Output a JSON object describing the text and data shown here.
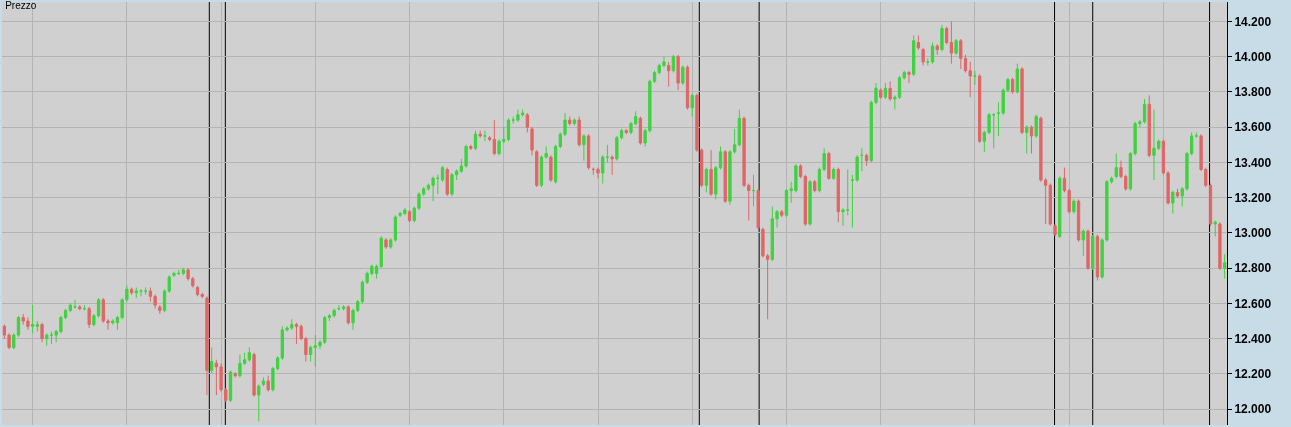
{
  "chart_data": {
    "type": "candlestick",
    "title": "Prezzo",
    "categories": [
      null,
      null,
      null,
      null,
      null,
      null,
      null,
      null,
      null,
      null,
      null,
      null,
      null,
      null,
      null,
      null,
      null,
      null,
      null,
      null,
      null,
      null,
      null,
      null,
      null,
      null,
      null,
      null,
      null,
      null,
      null,
      null,
      null,
      null,
      null,
      null,
      null,
      null,
      null,
      null,
      null,
      null,
      null,
      null,
      null,
      null,
      null,
      null,
      null,
      null,
      null,
      null,
      null,
      null,
      null,
      null,
      null,
      null,
      null,
      null,
      null,
      null,
      null,
      null,
      null,
      null,
      null,
      null,
      null,
      null,
      null,
      null,
      null,
      null,
      null,
      null,
      null,
      null,
      null,
      null,
      null,
      null,
      null,
      null,
      null,
      null,
      null,
      null,
      null,
      null,
      null,
      null,
      null,
      null,
      null,
      null,
      null,
      null,
      null,
      null,
      null,
      null,
      null,
      null,
      null,
      null,
      null,
      null,
      null,
      null,
      null,
      null,
      null,
      null,
      null,
      null,
      null,
      null,
      null,
      null,
      null,
      null,
      null,
      null,
      null,
      null,
      null,
      null,
      null,
      null,
      null,
      null,
      null,
      null,
      null,
      null,
      null,
      null,
      null,
      null,
      null,
      null,
      null,
      null,
      null,
      null,
      null,
      null,
      null,
      null,
      null,
      null,
      null,
      null,
      null,
      null,
      null,
      null,
      null,
      null,
      null,
      null,
      null,
      null,
      null,
      null,
      null,
      null,
      null,
      null,
      null,
      null,
      null,
      null,
      null,
      null,
      null,
      null,
      null,
      null,
      null,
      null,
      null,
      null,
      null,
      null,
      null,
      null,
      null,
      null,
      null,
      null,
      null,
      null,
      null,
      null,
      null,
      null,
      null,
      null,
      null,
      null,
      null,
      null,
      null,
      null,
      null,
      null,
      null,
      null,
      null,
      null,
      null,
      null,
      null,
      null,
      null,
      null,
      null,
      null,
      null,
      null,
      null,
      null,
      null,
      null,
      null,
      null,
      null,
      null,
      null,
      null,
      null,
      null,
      null,
      null,
      null,
      null,
      null,
      null,
      null,
      null,
      null,
      null,
      null,
      null,
      null,
      null,
      null,
      null,
      null,
      null,
      null,
      null,
      null,
      null,
      null,
      null,
      null,
      null
    ],
    "ohlc": [
      [
        12470,
        12480,
        12400,
        12420
      ],
      [
        12420,
        12430,
        12340,
        12350
      ],
      [
        12350,
        12430,
        12340,
        12420
      ],
      [
        12420,
        12530,
        12410,
        12520
      ],
      [
        12520,
        12540,
        12480,
        12500
      ],
      [
        12500,
        12520,
        12450,
        12470
      ],
      [
        12470,
        12590,
        12430,
        12480
      ],
      [
        12470,
        12500,
        12440,
        12480
      ],
      [
        12480,
        12490,
        12380,
        12400
      ],
      [
        12400,
        12430,
        12360,
        12420
      ],
      [
        12420,
        12440,
        12370,
        12420
      ],
      [
        12420,
        12450,
        12380,
        12440
      ],
      [
        12440,
        12530,
        12430,
        12520
      ],
      [
        12520,
        12570,
        12510,
        12560
      ],
      [
        12560,
        12600,
        12550,
        12590
      ],
      [
        12580,
        12620,
        12570,
        12580
      ],
      [
        12580,
        12590,
        12560,
        12570
      ],
      [
        12570,
        12590,
        12560,
        12570
      ],
      [
        12570,
        12580,
        12460,
        12480
      ],
      [
        12480,
        12540,
        12470,
        12530
      ],
      [
        12530,
        12630,
        12520,
        12620
      ],
      [
        12620,
        12630,
        12490,
        12500
      ],
      [
        12500,
        12510,
        12450,
        12490
      ],
      [
        12490,
        12510,
        12480,
        12500
      ],
      [
        12490,
        12530,
        12450,
        12520
      ],
      [
        12520,
        12630,
        12510,
        12620
      ],
      [
        12620,
        12700,
        12610,
        12680
      ],
      [
        12680,
        12690,
        12650,
        12660
      ],
      [
        12660,
        12690,
        12630,
        12670
      ],
      [
        12670,
        12680,
        12640,
        12670
      ],
      [
        12670,
        12690,
        12650,
        12670
      ],
      [
        12670,
        12690,
        12610,
        12640
      ],
      [
        12640,
        12650,
        12570,
        12590
      ],
      [
        12580,
        12590,
        12540,
        12560
      ],
      [
        12560,
        12680,
        12550,
        12670
      ],
      [
        12670,
        12760,
        12660,
        12750
      ],
      [
        12760,
        12780,
        12750,
        12770
      ],
      [
        12770,
        12790,
        12760,
        12770
      ],
      [
        12770,
        12800,
        12760,
        12790
      ],
      [
        12790,
        12800,
        12730,
        12740
      ],
      [
        12740,
        12750,
        12690,
        12700
      ],
      [
        12690,
        12700,
        12640,
        12650
      ],
      [
        12650,
        12660,
        12630,
        12640
      ],
      [
        12630,
        12640,
        12080,
        12220
      ],
      [
        12220,
        12350,
        12200,
        12270
      ],
      [
        12260,
        12280,
        12080,
        12240
      ],
      [
        12240,
        12260,
        12100,
        12110
      ],
      [
        12110,
        12120,
        12040,
        12050
      ],
      [
        12050,
        12220,
        12040,
        12210
      ],
      [
        12200,
        12210,
        12180,
        12190
      ],
      [
        12190,
        12310,
        12180,
        12260
      ],
      [
        12260,
        12320,
        12250,
        12280
      ],
      [
        12280,
        12350,
        12270,
        12320
      ],
      [
        12310,
        12320,
        12070,
        12080
      ],
      [
        12080,
        12140,
        11930,
        12130
      ],
      [
        12140,
        12180,
        12130,
        12160
      ],
      [
        12160,
        12190,
        12100,
        12110
      ],
      [
        12110,
        12240,
        12100,
        12230
      ],
      [
        12230,
        12300,
        12220,
        12290
      ],
      [
        12290,
        12470,
        12280,
        12450
      ],
      [
        12450,
        12470,
        12440,
        12460
      ],
      [
        12460,
        12510,
        12450,
        12480
      ],
      [
        12480,
        12490,
        12370,
        12470
      ],
      [
        12470,
        12480,
        12390,
        12400
      ],
      [
        12400,
        12410,
        12270,
        12310
      ],
      [
        12310,
        12360,
        12270,
        12350
      ],
      [
        12350,
        12420,
        12240,
        12360
      ],
      [
        12360,
        12390,
        12340,
        12380
      ],
      [
        12380,
        12530,
        12370,
        12520
      ],
      [
        12520,
        12540,
        12500,
        12530
      ],
      [
        12530,
        12570,
        12520,
        12560
      ],
      [
        12570,
        12590,
        12560,
        12570
      ],
      [
        12570,
        12590,
        12560,
        12580
      ],
      [
        12580,
        12590,
        12480,
        12490
      ],
      [
        12490,
        12570,
        12450,
        12560
      ],
      [
        12560,
        12620,
        12550,
        12610
      ],
      [
        12610,
        12730,
        12600,
        12720
      ],
      [
        12720,
        12780,
        12710,
        12770
      ],
      [
        12770,
        12820,
        12760,
        12810
      ],
      [
        12770,
        12820,
        12740,
        12810
      ],
      [
        12810,
        12980,
        12800,
        12970
      ],
      [
        12960,
        12970,
        12910,
        12920
      ],
      [
        12920,
        12970,
        12910,
        12960
      ],
      [
        12960,
        13100,
        12950,
        13090
      ],
      [
        13100,
        13120,
        13090,
        13110
      ],
      [
        13110,
        13140,
        13100,
        13130
      ],
      [
        13120,
        13130,
        13060,
        13070
      ],
      [
        13070,
        13150,
        13060,
        13140
      ],
      [
        13140,
        13230,
        13130,
        13220
      ],
      [
        13220,
        13260,
        13210,
        13250
      ],
      [
        13250,
        13280,
        13240,
        13270
      ],
      [
        13270,
        13320,
        13180,
        13310
      ],
      [
        13310,
        13330,
        13220,
        13310
      ],
      [
        13300,
        13380,
        13290,
        13370
      ],
      [
        13360,
        13370,
        13210,
        13220
      ],
      [
        13220,
        13340,
        13210,
        13330
      ],
      [
        13330,
        13360,
        13300,
        13350
      ],
      [
        13350,
        13420,
        13340,
        13380
      ],
      [
        13380,
        13500,
        13370,
        13490
      ],
      [
        13490,
        13500,
        13470,
        13480
      ],
      [
        13480,
        13580,
        13470,
        13560
      ],
      [
        13560,
        13580,
        13540,
        13550
      ],
      [
        13550,
        13580,
        13520,
        13550
      ],
      [
        13540,
        13550,
        13520,
        13530
      ],
      [
        13530,
        13640,
        13440,
        13450
      ],
      [
        13450,
        13530,
        13440,
        13520
      ],
      [
        13520,
        13600,
        13510,
        13530
      ],
      [
        13530,
        13650,
        13520,
        13640
      ],
      [
        13640,
        13660,
        13620,
        13640
      ],
      [
        13640,
        13700,
        13630,
        13670
      ],
      [
        13670,
        13700,
        13660,
        13680
      ],
      [
        13670,
        13680,
        13570,
        13600
      ],
      [
        13590,
        13600,
        13440,
        13470
      ],
      [
        13460,
        13470,
        13260,
        13270
      ],
      [
        13270,
        13440,
        13260,
        13430
      ],
      [
        13430,
        13490,
        13420,
        13450
      ],
      [
        13430,
        13440,
        13290,
        13300
      ],
      [
        13290,
        13500,
        13280,
        13490
      ],
      [
        13490,
        13570,
        13480,
        13560
      ],
      [
        13560,
        13680,
        13550,
        13640
      ],
      [
        13640,
        13660,
        13610,
        13620
      ],
      [
        13620,
        13650,
        13610,
        13640
      ],
      [
        13640,
        13660,
        13490,
        13500
      ],
      [
        13500,
        13560,
        13410,
        13550
      ],
      [
        13550,
        13560,
        13360,
        13370
      ],
      [
        13360,
        13370,
        13330,
        13360
      ],
      [
        13360,
        13370,
        13310,
        13340
      ],
      [
        13340,
        13440,
        13280,
        13430
      ],
      [
        13430,
        13500,
        13400,
        13430
      ],
      [
        13430,
        13440,
        13330,
        13420
      ],
      [
        13420,
        13550,
        13410,
        13540
      ],
      [
        13540,
        13590,
        13530,
        13580
      ],
      [
        13580,
        13590,
        13560,
        13570
      ],
      [
        13570,
        13630,
        13560,
        13620
      ],
      [
        13620,
        13690,
        13610,
        13660
      ],
      [
        13650,
        13660,
        13500,
        13510
      ],
      [
        13510,
        13590,
        13490,
        13580
      ],
      [
        13580,
        13870,
        13570,
        13860
      ],
      [
        13860,
        13920,
        13850,
        13910
      ],
      [
        13910,
        13960,
        13900,
        13950
      ],
      [
        13950,
        14000,
        13940,
        13970
      ],
      [
        13950,
        13970,
        13830,
        13920
      ],
      [
        13920,
        14010,
        13910,
        14000
      ],
      [
        14000,
        14010,
        13810,
        13850
      ],
      [
        13850,
        13950,
        13840,
        13940
      ],
      [
        13940,
        13950,
        13700,
        13710
      ],
      [
        13710,
        13790,
        13660,
        13780
      ],
      [
        13780,
        13790,
        13460,
        13470
      ],
      [
        13470,
        13480,
        13260,
        13270
      ],
      [
        13270,
        13370,
        13230,
        13360
      ],
      [
        13360,
        13470,
        13210,
        13220
      ],
      [
        13220,
        13380,
        13190,
        13370
      ],
      [
        13370,
        13490,
        13360,
        13460
      ],
      [
        13460,
        13470,
        13170,
        13180
      ],
      [
        13180,
        13470,
        13160,
        13460
      ],
      [
        13460,
        13590,
        13450,
        13500
      ],
      [
        13500,
        13700,
        13490,
        13650
      ],
      [
        13650,
        13660,
        13260,
        13270
      ],
      [
        13270,
        13280,
        13070,
        13240
      ],
      [
        13240,
        13330,
        13150,
        13240
      ],
      [
        13240,
        13250,
        13020,
        13030
      ],
      [
        13020,
        13030,
        12860,
        12870
      ],
      [
        12870,
        12880,
        12510,
        12850
      ],
      [
        12850,
        13150,
        12840,
        13080
      ],
      [
        13080,
        13130,
        13030,
        13120
      ],
      [
        13120,
        13130,
        13090,
        13100
      ],
      [
        13100,
        13250,
        13090,
        13240
      ],
      [
        13240,
        13290,
        13170,
        13250
      ],
      [
        13240,
        13390,
        13230,
        13380
      ],
      [
        13380,
        13390,
        13310,
        13320
      ],
      [
        13320,
        13330,
        13040,
        13050
      ],
      [
        13050,
        13300,
        13040,
        13290
      ],
      [
        13290,
        13300,
        13230,
        13240
      ],
      [
        13240,
        13370,
        13230,
        13360
      ],
      [
        13360,
        13480,
        13350,
        13450
      ],
      [
        13450,
        13460,
        13300,
        13310
      ],
      [
        13310,
        13370,
        13300,
        13360
      ],
      [
        13360,
        13370,
        13060,
        13120
      ],
      [
        13120,
        13140,
        13040,
        13130
      ],
      [
        13130,
        13360,
        13100,
        13130
      ],
      [
        13300,
        13330,
        13030,
        13300
      ],
      [
        13300,
        13440,
        13290,
        13430
      ],
      [
        13440,
        13480,
        13350,
        13440
      ],
      [
        13440,
        13450,
        13380,
        13410
      ],
      [
        13410,
        13750,
        13400,
        13740
      ],
      [
        13740,
        13850,
        13730,
        13820
      ],
      [
        13810,
        13820,
        13760,
        13770
      ],
      [
        13770,
        13850,
        13760,
        13820
      ],
      [
        13820,
        13860,
        13750,
        13760
      ],
      [
        13760,
        13780,
        13700,
        13770
      ],
      [
        13770,
        13890,
        13760,
        13880
      ],
      [
        13880,
        13920,
        13870,
        13910
      ],
      [
        13910,
        13920,
        13850,
        13900
      ],
      [
        13900,
        14120,
        13890,
        14090
      ],
      [
        14080,
        14120,
        14040,
        14050
      ],
      [
        14040,
        14050,
        13950,
        13970
      ],
      [
        13970,
        13990,
        13950,
        13970
      ],
      [
        13970,
        14080,
        13960,
        14060
      ],
      [
        14060,
        14070,
        14010,
        14040
      ],
      [
        14040,
        14180,
        14030,
        14160
      ],
      [
        14160,
        14170,
        14070,
        14080
      ],
      [
        14080,
        14200,
        13960,
        14020
      ],
      [
        14020,
        14100,
        14010,
        14090
      ],
      [
        14090,
        14100,
        13930,
        13990
      ],
      [
        13990,
        14010,
        13910,
        13920
      ],
      [
        13920,
        13970,
        13770,
        13890
      ],
      [
        13890,
        13920,
        13840,
        13890
      ],
      [
        13890,
        13900,
        13510,
        13520
      ],
      [
        13520,
        13580,
        13460,
        13570
      ],
      [
        13570,
        13680,
        13560,
        13670
      ],
      [
        13670,
        13680,
        13480,
        13670
      ],
      [
        13680,
        13740,
        13550,
        13680
      ],
      [
        13680,
        13820,
        13670,
        13810
      ],
      [
        13810,
        13880,
        13800,
        13870
      ],
      [
        13870,
        13880,
        13790,
        13800
      ],
      [
        13800,
        13960,
        13790,
        13930
      ],
      [
        13930,
        13940,
        13560,
        13570
      ],
      [
        13570,
        13610,
        13450,
        13600
      ],
      [
        13600,
        13610,
        13450,
        13550
      ],
      [
        13550,
        13670,
        13540,
        13660
      ],
      [
        13650,
        13660,
        13290,
        13300
      ],
      [
        13300,
        13310,
        13050,
        13270
      ],
      [
        13270,
        13280,
        13040,
        13050
      ],
      [
        13040,
        13050,
        12980,
        12990
      ],
      [
        12980,
        13320,
        12970,
        13310
      ],
      [
        13310,
        13370,
        13230,
        13240
      ],
      [
        13240,
        13250,
        13110,
        13120
      ],
      [
        13120,
        13190,
        13110,
        13180
      ],
      [
        13180,
        13190,
        12950,
        12960
      ],
      [
        12960,
        13020,
        12870,
        13010
      ],
      [
        13010,
        13020,
        12790,
        12800
      ],
      [
        12800,
        12990,
        12790,
        12980
      ],
      [
        12980,
        12990,
        12730,
        12750
      ],
      [
        12750,
        12970,
        12740,
        12960
      ],
      [
        12960,
        13300,
        12950,
        13290
      ],
      [
        13290,
        13320,
        13280,
        13310
      ],
      [
        13320,
        13450,
        13310,
        13370
      ],
      [
        13370,
        13410,
        13310,
        13320
      ],
      [
        13320,
        13330,
        13240,
        13250
      ],
      [
        13250,
        13460,
        13240,
        13450
      ],
      [
        13450,
        13630,
        13440,
        13620
      ],
      [
        13620,
        13640,
        13600,
        13630
      ],
      [
        13630,
        13760,
        13620,
        13730
      ],
      [
        13730,
        13780,
        13430,
        13440
      ],
      [
        13440,
        13700,
        13300,
        13480
      ],
      [
        13480,
        13530,
        13470,
        13520
      ],
      [
        13520,
        13530,
        13330,
        13340
      ],
      [
        13340,
        13350,
        13160,
        13170
      ],
      [
        13170,
        13240,
        13110,
        13230
      ],
      [
        13230,
        13250,
        13200,
        13210
      ],
      [
        13210,
        13260,
        13150,
        13250
      ],
      [
        13250,
        13460,
        13240,
        13450
      ],
      [
        13450,
        13570,
        13440,
        13550
      ],
      [
        13550,
        13570,
        13540,
        13550
      ],
      [
        13550,
        13560,
        13350,
        13360
      ],
      [
        13360,
        13370,
        13260,
        13270
      ],
      [
        13270,
        13280,
        13040,
        13050
      ],
      [
        13050,
        13070,
        12980,
        13060
      ],
      [
        13050,
        13060,
        12790,
        12800
      ],
      [
        12800,
        12880,
        12740,
        12830
      ]
    ],
    "ylim": [
      11910,
      14310
    ],
    "yticks": [
      {
        "value": 12000,
        "label": "12.000"
      },
      {
        "value": 12200,
        "label": "12.200"
      },
      {
        "value": 12400,
        "label": "12.400"
      },
      {
        "value": 12600,
        "label": "12.600"
      },
      {
        "value": 12800,
        "label": "12.800"
      },
      {
        "value": 13000,
        "label": "13.000"
      },
      {
        "value": 13200,
        "label": "13.200"
      },
      {
        "value": 13400,
        "label": "13.400"
      },
      {
        "value": 13600,
        "label": "13.600"
      },
      {
        "value": 13800,
        "label": "13.800"
      },
      {
        "value": 14000,
        "label": "14.000"
      },
      {
        "value": 14200,
        "label": "14.200"
      }
    ],
    "colors": [
      "#e06666",
      "#e06666",
      "#3fd23f",
      "#3fd23f",
      "#e06666",
      "#e06666",
      "#3fd23f",
      "#3fd23f",
      "#e06666",
      "#3fd23f",
      "#3fd23f",
      "#3fd23f",
      "#3fd23f",
      "#3fd23f",
      "#3fd23f",
      "#3fd23f",
      "#e06666",
      "#3fd23f",
      "#e06666",
      "#3fd23f",
      "#3fd23f",
      "#e06666",
      "#e06666",
      "#3fd23f",
      "#3fd23f",
      "#3fd23f",
      "#3fd23f",
      "#e06666",
      "#3fd23f",
      "#3fd23f",
      "#3fd23f",
      "#e06666",
      "#e06666",
      "#e06666",
      "#3fd23f",
      "#3fd23f",
      "#3fd23f",
      "#3fd23f",
      "#3fd23f",
      "#e06666",
      "#e06666",
      "#e06666",
      "#e06666",
      "#e06666",
      "#3fd23f",
      "#e06666",
      "#e06666",
      "#e06666",
      "#3fd23f",
      "#e06666",
      "#3fd23f",
      "#3fd23f",
      "#3fd23f",
      "#e06666",
      "#3fd23f",
      "#3fd23f",
      "#e06666",
      "#3fd23f",
      "#3fd23f",
      "#3fd23f",
      "#3fd23f",
      "#3fd23f",
      "#e06666",
      "#e06666",
      "#e06666",
      "#3fd23f",
      "#3fd23f",
      "#3fd23f",
      "#3fd23f",
      "#3fd23f",
      "#3fd23f",
      "#3fd23f",
      "#3fd23f",
      "#e06666",
      "#3fd23f",
      "#3fd23f",
      "#3fd23f",
      "#3fd23f",
      "#3fd23f",
      "#3fd23f",
      "#3fd23f",
      "#e06666",
      "#3fd23f",
      "#3fd23f",
      "#3fd23f",
      "#3fd23f",
      "#e06666",
      "#3fd23f",
      "#3fd23f",
      "#3fd23f",
      "#3fd23f",
      "#3fd23f",
      "#3fd23f",
      "#3fd23f",
      "#e06666",
      "#3fd23f",
      "#3fd23f",
      "#3fd23f",
      "#3fd23f",
      "#e06666",
      "#3fd23f",
      "#e06666",
      "#3fd23f",
      "#e06666",
      "#e06666",
      "#3fd23f",
      "#3fd23f",
      "#3fd23f",
      "#3fd23f",
      "#3fd23f",
      "#3fd23f",
      "#e06666",
      "#e06666",
      "#e06666",
      "#3fd23f",
      "#3fd23f",
      "#e06666",
      "#3fd23f",
      "#3fd23f",
      "#3fd23f",
      "#e06666",
      "#3fd23f",
      "#e06666",
      "#3fd23f",
      "#e06666",
      "#e06666",
      "#e06666",
      "#3fd23f",
      "#3fd23f",
      "#e06666",
      "#3fd23f",
      "#3fd23f",
      "#e06666",
      "#3fd23f",
      "#3fd23f",
      "#e06666",
      "#3fd23f",
      "#3fd23f",
      "#3fd23f",
      "#3fd23f",
      "#3fd23f",
      "#e06666",
      "#3fd23f",
      "#e06666",
      "#3fd23f",
      "#e06666",
      "#3fd23f",
      "#e06666",
      "#e06666",
      "#3fd23f",
      "#e06666",
      "#3fd23f",
      "#3fd23f",
      "#e06666",
      "#3fd23f",
      "#3fd23f",
      "#3fd23f",
      "#e06666",
      "#e06666",
      "#3fd23f",
      "#e06666",
      "#e06666",
      "#e06666",
      "#3fd23f",
      "#3fd23f",
      "#e06666",
      "#3fd23f",
      "#3fd23f",
      "#3fd23f",
      "#e06666",
      "#e06666",
      "#3fd23f",
      "#e06666",
      "#3fd23f",
      "#3fd23f",
      "#e06666",
      "#3fd23f",
      "#e06666",
      "#3fd23f",
      "#3fd23f",
      "#3fd23f",
      "#3fd23f",
      "#3fd23f",
      "#e06666",
      "#3fd23f",
      "#3fd23f",
      "#e06666",
      "#3fd23f",
      "#e06666",
      "#3fd23f",
      "#3fd23f",
      "#3fd23f",
      "#e06666",
      "#3fd23f",
      "#e06666",
      "#e06666",
      "#3fd23f",
      "#3fd23f",
      "#e06666",
      "#3fd23f",
      "#e06666",
      "#e06666",
      "#3fd23f",
      "#e06666",
      "#e06666",
      "#e06666",
      "#3fd23f",
      "#e06666",
      "#3fd23f",
      "#3fd23f",
      "#3fd23f",
      "#3fd23f",
      "#3fd23f",
      "#3fd23f",
      "#e06666",
      "#3fd23f",
      "#e06666",
      "#3fd23f",
      "#e06666",
      "#3fd23f",
      "#e06666",
      "#e06666",
      "#e06666",
      "#e06666",
      "#3fd23f",
      "#e06666",
      "#e06666",
      "#3fd23f",
      "#e06666",
      "#3fd23f",
      "#e06666",
      "#3fd23f",
      "#e06666",
      "#3fd23f",
      "#3fd23f",
      "#3fd23f",
      "#3fd23f",
      "#e06666",
      "#e06666",
      "#3fd23f",
      "#3fd23f",
      "#3fd23f",
      "#3fd23f",
      "#e06666",
      "#3fd23f",
      "#3fd23f",
      "#e06666",
      "#e06666",
      "#3fd23f",
      "#e06666",
      "#3fd23f",
      "#3fd23f",
      "#3fd23f",
      "#3fd23f",
      "#e06666",
      "#e06666",
      "#e06666",
      "#3fd23f",
      "#e06666",
      "#3fd23f"
    ],
    "tick_labels": "y",
    "grid": true
  }
}
